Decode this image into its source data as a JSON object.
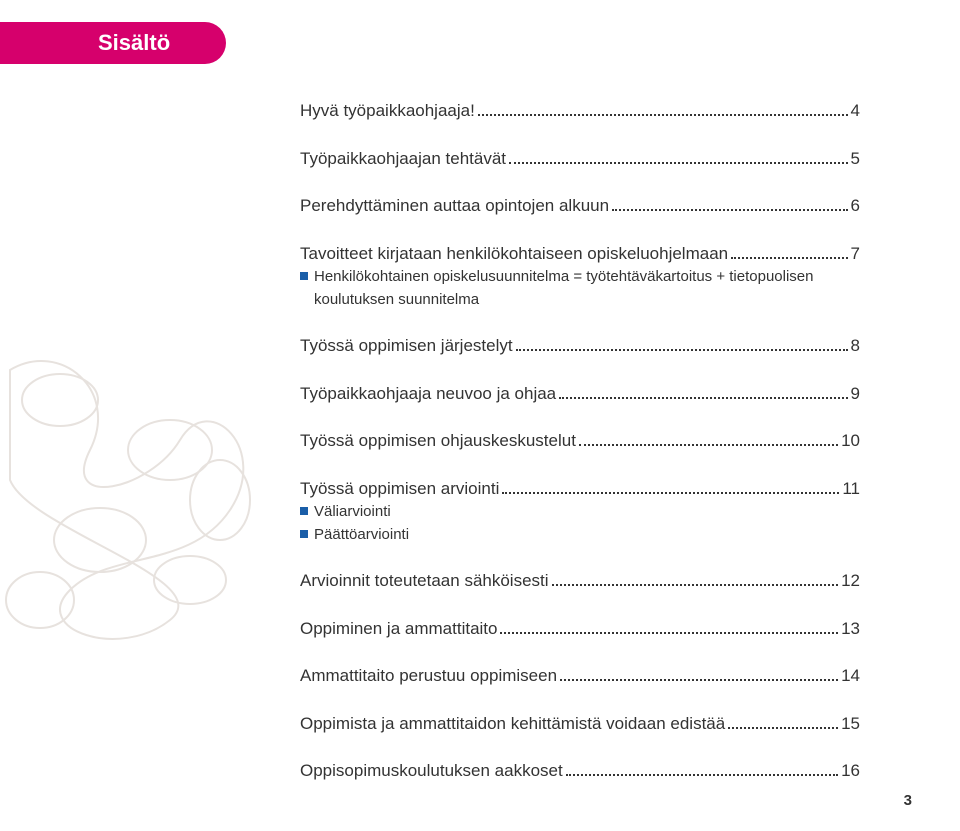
{
  "colors": {
    "magenta": "#d6006c",
    "text": "#333333",
    "dots": "#333333",
    "bullet": "#1a5ea8",
    "deco": "#e7e2de",
    "pagenum": "#333333"
  },
  "typography": {
    "header_fontsize": 22,
    "header_weight": "bold",
    "entry_fontsize": 17,
    "sub_fontsize": 15,
    "pagenum_fontsize": 15
  },
  "header": {
    "title": "Sisältö"
  },
  "toc": [
    {
      "label": "Hyvä työpaikkaohjaaja!",
      "page": "4"
    },
    {
      "label": "Työpaikkaohjaajan tehtävät",
      "page": "5"
    },
    {
      "label": "Perehdyttäminen auttaa opintojen alkuun",
      "page": "6"
    },
    {
      "label": "Tavoitteet kirjataan henkilökohtaiseen opiskeluohjelmaan",
      "page": "7",
      "subs": [
        {
          "label": "Henkilökohtainen opiskelusuunnitelma = työtehtäväkartoitus + tietopuolisen koulutuksen suunnitelma"
        }
      ]
    },
    {
      "label": "Työssä oppimisen järjestelyt",
      "page": "8"
    },
    {
      "label": "Työpaikkaohjaaja neuvoo ja ohjaa",
      "page": "9"
    },
    {
      "label": "Työssä oppimisen ohjauskeskustelut",
      "page": "10"
    },
    {
      "label": "Työssä oppimisen arviointi",
      "page": "11",
      "subs": [
        {
          "label": "Väliarviointi"
        },
        {
          "label": "Päättöarviointi"
        }
      ]
    },
    {
      "label": "Arvioinnit toteutetaan sähköisesti",
      "page": "12"
    },
    {
      "label": "Oppiminen ja ammattitaito",
      "page": "13"
    },
    {
      "label": "Ammattitaito perustuu oppimiseen",
      "page": "14"
    },
    {
      "label": "Oppimista ja ammattitaidon kehittämistä voidaan edistää",
      "page": "15"
    },
    {
      "label": "Oppisopimuskoulutuksen aakkoset",
      "page": "16"
    }
  ],
  "page_number": "3"
}
